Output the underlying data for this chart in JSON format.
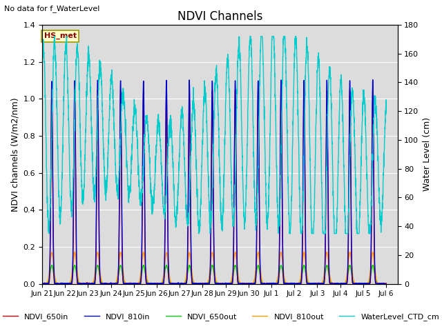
{
  "title": "NDVI Channels",
  "subtitle": "No data for f_WaterLevel",
  "ylabel_left": "NDVI channels (W/m2/nm)",
  "ylabel_right": "Water Level (cm)",
  "ylim_left": [
    0,
    1.4
  ],
  "ylim_right": [
    0,
    180
  ],
  "yticks_left": [
    0.0,
    0.2,
    0.4,
    0.6,
    0.8,
    1.0,
    1.2,
    1.4
  ],
  "yticks_right": [
    0,
    20,
    40,
    60,
    80,
    100,
    120,
    140,
    160,
    180
  ],
  "colors": {
    "NDVI_650in": "#cc0000",
    "NDVI_810in": "#0000cc",
    "NDVI_650out": "#00cc00",
    "NDVI_810out": "#ff9900",
    "WaterLevel_CTD_cm": "#00cccc"
  },
  "legend_label": "HS_met",
  "plot_bg_color": "#dcdcdc",
  "num_days": 15,
  "x_labels": [
    "Jun 21",
    "Jun 22",
    "Jun 23",
    "Jun 24",
    "Jun 25",
    "Jun 26",
    "Jun 27",
    "Jun 28",
    "Jun 29",
    "Jun 30",
    "Jul 1",
    "Jul 2",
    "Jul 3",
    "Jul 4",
    "Jul 5",
    "Jul 6"
  ]
}
